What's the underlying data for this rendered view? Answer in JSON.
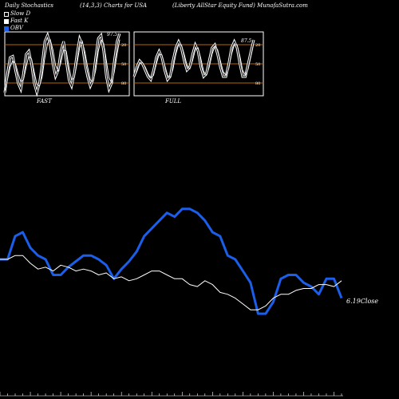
{
  "header": {
    "left": "Daily Stochastics",
    "middle": "(14,3,3) Charts for USA",
    "right": "(Liberty AllStar Equity Fund) MunafaSutra.com"
  },
  "legend": {
    "slow": "Slow  D",
    "fast": "Fast K",
    "obv": "OBV"
  },
  "colors": {
    "obv": "#1a5eea",
    "price": "#ffffff",
    "grid": "#b8640a",
    "background": "#000000"
  },
  "chart_data": [
    {
      "type": "line",
      "panel": "FAST",
      "title": "FAST",
      "ylim": [
        0,
        100
      ],
      "gridlines": [
        20,
        50,
        80
      ],
      "ytick_labels": [
        "80",
        "50",
        "20"
      ],
      "last_value_label": "97.5",
      "series": [
        {
          "values": [
            5,
            35,
            60,
            62,
            40,
            20,
            10,
            35,
            65,
            70,
            50,
            20,
            5,
            20,
            50,
            85,
            95,
            80,
            50,
            30,
            40,
            70,
            85,
            55,
            25,
            15,
            35,
            65,
            90,
            80,
            50,
            30,
            15,
            25,
            60,
            90,
            95,
            70,
            30,
            10,
            20,
            55,
            85,
            97.5
          ]
        },
        {
          "values": [
            8,
            25,
            45,
            55,
            50,
            35,
            22,
            25,
            45,
            62,
            58,
            38,
            18,
            15,
            30,
            60,
            82,
            88,
            72,
            48,
            38,
            52,
            72,
            70,
            45,
            25,
            28,
            50,
            75,
            85,
            68,
            45,
            25,
            22,
            40,
            70,
            88,
            82,
            55,
            28,
            20,
            38,
            65,
            88
          ]
        }
      ]
    },
    {
      "type": "line",
      "panel": "FULL",
      "title": "FULL",
      "ylim": [
        0,
        100
      ],
      "gridlines": [
        20,
        50,
        80
      ],
      "ytick_labels": [
        "80",
        "50",
        "20"
      ],
      "last_value_label": "87.5",
      "series": [
        {
          "values": [
            30,
            45,
            55,
            50,
            40,
            30,
            25,
            40,
            60,
            70,
            60,
            40,
            25,
            30,
            55,
            75,
            85,
            75,
            55,
            40,
            45,
            65,
            80,
            70,
            45,
            30,
            35,
            55,
            75,
            80,
            65,
            45,
            30,
            30,
            50,
            75,
            85,
            75,
            50,
            30,
            30,
            50,
            70,
            87.5
          ]
        },
        {
          "values": [
            28,
            38,
            50,
            52,
            45,
            35,
            28,
            32,
            50,
            65,
            64,
            48,
            32,
            28,
            42,
            65,
            80,
            80,
            65,
            48,
            42,
            55,
            72,
            75,
            58,
            38,
            32,
            45,
            65,
            78,
            72,
            55,
            38,
            32,
            42,
            65,
            80,
            80,
            62,
            40,
            32,
            42,
            62,
            82
          ]
        }
      ]
    },
    {
      "type": "line",
      "panel": "main",
      "close_label": "6.19Close",
      "series": [
        {
          "name": "OBV",
          "values": [
            58,
            58,
            70,
            72,
            64,
            60,
            58,
            50,
            50,
            54,
            57,
            60,
            60,
            58,
            55,
            48,
            53,
            57,
            62,
            70,
            74,
            78,
            82,
            80,
            84,
            84,
            82,
            78,
            72,
            70,
            60,
            58,
            52,
            46,
            30,
            30,
            36,
            48,
            50,
            50,
            46,
            44,
            40,
            48,
            48,
            38
          ]
        },
        {
          "values": [
            58,
            58,
            60,
            60,
            56,
            53,
            54,
            52,
            55,
            54,
            52,
            53,
            52,
            50,
            51,
            48,
            49,
            47,
            48,
            50,
            52,
            52,
            50,
            48,
            48,
            45,
            44,
            47,
            45,
            41,
            40,
            38,
            35,
            32,
            32,
            34,
            38,
            40,
            40,
            42,
            43,
            43,
            45,
            45,
            44,
            47
          ]
        }
      ]
    }
  ]
}
